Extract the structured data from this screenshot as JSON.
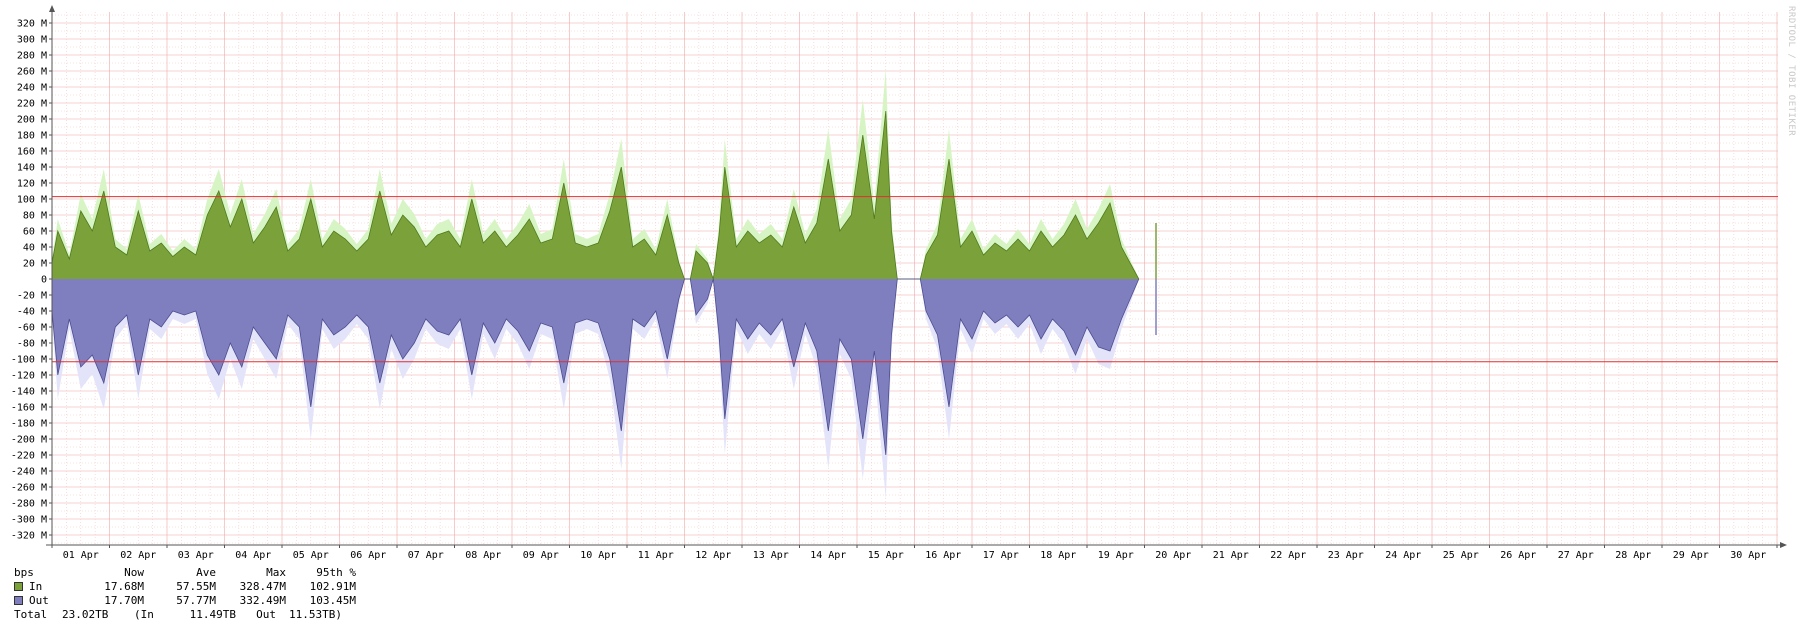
{
  "watermark": "RRDTOOL / TOBI OETIKER",
  "colors": {
    "in": "#7ba13a",
    "in_line": "#4f7a1d",
    "in_max": "#d7f5c4",
    "out": "#7f7fc0",
    "out_line": "#4c4c8f",
    "out_max": "#e3e3fa",
    "percentile_line": "#e03030",
    "grid_minor": "#f4c8c8",
    "grid_major": "#f0a8a8"
  },
  "chart_data": {
    "type": "area",
    "unit": "bps",
    "ylim": [
      -330,
      330
    ],
    "yticks": [
      "320 M",
      "300 M",
      "280 M",
      "260 M",
      "240 M",
      "220 M",
      "200 M",
      "180 M",
      "160 M",
      "140 M",
      "120 M",
      "100 M",
      "80 M",
      "60 M",
      "40 M",
      "20 M",
      "0",
      "-20 M",
      "-40 M",
      "-60 M",
      "-80 M",
      "-100 M",
      "-120 M",
      "-140 M",
      "-160 M",
      "-180 M",
      "-200 M",
      "-220 M",
      "-240 M",
      "-260 M",
      "-280 M",
      "-300 M",
      "-320 M"
    ],
    "yticks_values": [
      320,
      300,
      280,
      260,
      240,
      220,
      200,
      180,
      160,
      140,
      120,
      100,
      80,
      60,
      40,
      20,
      0,
      -20,
      -40,
      -60,
      -80,
      -100,
      -120,
      -140,
      -160,
      -180,
      -200,
      -220,
      -240,
      -260,
      -280,
      -300,
      -320
    ],
    "xticks": [
      "01 Apr",
      "02 Apr",
      "03 Apr",
      "04 Apr",
      "05 Apr",
      "06 Apr",
      "07 Apr",
      "08 Apr",
      "09 Apr",
      "10 Apr",
      "11 Apr",
      "12 Apr",
      "13 Apr",
      "14 Apr",
      "15 Apr",
      "16 Apr",
      "17 Apr",
      "18 Apr",
      "19 Apr",
      "20 Apr",
      "21 Apr",
      "22 Apr",
      "23 Apr",
      "24 Apr",
      "25 Apr",
      "26 Apr",
      "27 Apr",
      "28 Apr",
      "29 Apr",
      "30 Apr"
    ],
    "x_days_range": [
      0,
      30
    ],
    "percentile_in": 102.91,
    "percentile_out": 103.45,
    "series": [
      {
        "name": "In",
        "points": [
          [
            0,
            20
          ],
          [
            0.1,
            60
          ],
          [
            0.3,
            25
          ],
          [
            0.5,
            85
          ],
          [
            0.7,
            60
          ],
          [
            0.9,
            110
          ],
          [
            1.1,
            40
          ],
          [
            1.3,
            30
          ],
          [
            1.5,
            85
          ],
          [
            1.7,
            35
          ],
          [
            1.9,
            45
          ],
          [
            2.1,
            28
          ],
          [
            2.3,
            40
          ],
          [
            2.5,
            30
          ],
          [
            2.7,
            80
          ],
          [
            2.9,
            110
          ],
          [
            3.1,
            65
          ],
          [
            3.3,
            100
          ],
          [
            3.5,
            45
          ],
          [
            3.7,
            65
          ],
          [
            3.9,
            90
          ],
          [
            4.1,
            35
          ],
          [
            4.3,
            50
          ],
          [
            4.5,
            100
          ],
          [
            4.7,
            40
          ],
          [
            4.9,
            60
          ],
          [
            5.1,
            50
          ],
          [
            5.3,
            35
          ],
          [
            5.5,
            50
          ],
          [
            5.7,
            110
          ],
          [
            5.9,
            55
          ],
          [
            6.1,
            80
          ],
          [
            6.3,
            65
          ],
          [
            6.5,
            40
          ],
          [
            6.7,
            55
          ],
          [
            6.9,
            60
          ],
          [
            7.1,
            40
          ],
          [
            7.3,
            100
          ],
          [
            7.5,
            45
          ],
          [
            7.7,
            60
          ],
          [
            7.9,
            40
          ],
          [
            8.1,
            55
          ],
          [
            8.3,
            75
          ],
          [
            8.5,
            45
          ],
          [
            8.7,
            50
          ],
          [
            8.9,
            120
          ],
          [
            9.1,
            45
          ],
          [
            9.3,
            40
          ],
          [
            9.5,
            45
          ],
          [
            9.7,
            85
          ],
          [
            9.9,
            140
          ],
          [
            10.1,
            40
          ],
          [
            10.3,
            50
          ],
          [
            10.5,
            30
          ],
          [
            10.7,
            80
          ],
          [
            10.9,
            20
          ],
          [
            11.0,
            0
          ],
          [
            11.1,
            0
          ],
          [
            11.2,
            35
          ],
          [
            11.4,
            20
          ],
          [
            11.5,
            0
          ],
          [
            11.6,
            55
          ],
          [
            11.7,
            140
          ],
          [
            11.9,
            40
          ],
          [
            12.1,
            60
          ],
          [
            12.3,
            45
          ],
          [
            12.5,
            55
          ],
          [
            12.7,
            40
          ],
          [
            12.9,
            90
          ],
          [
            13.1,
            45
          ],
          [
            13.3,
            70
          ],
          [
            13.5,
            150
          ],
          [
            13.7,
            60
          ],
          [
            13.9,
            80
          ],
          [
            14.1,
            180
          ],
          [
            14.3,
            75
          ],
          [
            14.5,
            210
          ],
          [
            14.6,
            60
          ],
          [
            14.7,
            0
          ],
          [
            15.1,
            0
          ],
          [
            15.2,
            30
          ],
          [
            15.4,
            55
          ],
          [
            15.6,
            150
          ],
          [
            15.8,
            40
          ],
          [
            16.0,
            60
          ],
          [
            16.2,
            30
          ],
          [
            16.4,
            45
          ],
          [
            16.6,
            35
          ],
          [
            16.8,
            50
          ],
          [
            17.0,
            35
          ],
          [
            17.2,
            60
          ],
          [
            17.4,
            40
          ],
          [
            17.6,
            55
          ],
          [
            17.8,
            80
          ],
          [
            18.0,
            50
          ],
          [
            18.2,
            70
          ],
          [
            18.4,
            95
          ],
          [
            18.6,
            40
          ],
          [
            18.9,
            0
          ]
        ]
      },
      {
        "name": "Out",
        "points": [
          [
            0,
            -40
          ],
          [
            0.1,
            -120
          ],
          [
            0.3,
            -50
          ],
          [
            0.5,
            -110
          ],
          [
            0.7,
            -95
          ],
          [
            0.9,
            -130
          ],
          [
            1.1,
            -60
          ],
          [
            1.3,
            -45
          ],
          [
            1.5,
            -120
          ],
          [
            1.7,
            -50
          ],
          [
            1.9,
            -60
          ],
          [
            2.1,
            -40
          ],
          [
            2.3,
            -45
          ],
          [
            2.5,
            -40
          ],
          [
            2.7,
            -95
          ],
          [
            2.9,
            -120
          ],
          [
            3.1,
            -80
          ],
          [
            3.3,
            -110
          ],
          [
            3.5,
            -60
          ],
          [
            3.7,
            -80
          ],
          [
            3.9,
            -100
          ],
          [
            4.1,
            -45
          ],
          [
            4.3,
            -60
          ],
          [
            4.5,
            -160
          ],
          [
            4.7,
            -50
          ],
          [
            4.9,
            -70
          ],
          [
            5.1,
            -60
          ],
          [
            5.3,
            -45
          ],
          [
            5.5,
            -60
          ],
          [
            5.7,
            -130
          ],
          [
            5.9,
            -70
          ],
          [
            6.1,
            -100
          ],
          [
            6.3,
            -80
          ],
          [
            6.5,
            -50
          ],
          [
            6.7,
            -65
          ],
          [
            6.9,
            -70
          ],
          [
            7.1,
            -50
          ],
          [
            7.3,
            -120
          ],
          [
            7.5,
            -55
          ],
          [
            7.7,
            -80
          ],
          [
            7.9,
            -50
          ],
          [
            8.1,
            -65
          ],
          [
            8.3,
            -90
          ],
          [
            8.5,
            -55
          ],
          [
            8.7,
            -60
          ],
          [
            8.9,
            -130
          ],
          [
            9.1,
            -55
          ],
          [
            9.3,
            -50
          ],
          [
            9.5,
            -55
          ],
          [
            9.7,
            -100
          ],
          [
            9.9,
            -190
          ],
          [
            10.1,
            -50
          ],
          [
            10.3,
            -60
          ],
          [
            10.5,
            -40
          ],
          [
            10.7,
            -100
          ],
          [
            10.9,
            -25
          ],
          [
            11.0,
            0
          ],
          [
            11.1,
            0
          ],
          [
            11.2,
            -45
          ],
          [
            11.4,
            -25
          ],
          [
            11.5,
            0
          ],
          [
            11.6,
            -70
          ],
          [
            11.7,
            -175
          ],
          [
            11.9,
            -50
          ],
          [
            12.1,
            -75
          ],
          [
            12.3,
            -55
          ],
          [
            12.5,
            -70
          ],
          [
            12.7,
            -50
          ],
          [
            12.9,
            -110
          ],
          [
            13.1,
            -55
          ],
          [
            13.3,
            -90
          ],
          [
            13.5,
            -190
          ],
          [
            13.7,
            -75
          ],
          [
            13.9,
            -100
          ],
          [
            14.1,
            -200
          ],
          [
            14.3,
            -90
          ],
          [
            14.5,
            -220
          ],
          [
            14.6,
            -70
          ],
          [
            14.7,
            0
          ],
          [
            15.1,
            0
          ],
          [
            15.2,
            -40
          ],
          [
            15.4,
            -70
          ],
          [
            15.6,
            -160
          ],
          [
            15.8,
            -50
          ],
          [
            16.0,
            -75
          ],
          [
            16.2,
            -40
          ],
          [
            16.4,
            -55
          ],
          [
            16.6,
            -45
          ],
          [
            16.8,
            -60
          ],
          [
            17.0,
            -45
          ],
          [
            17.2,
            -75
          ],
          [
            17.4,
            -50
          ],
          [
            17.6,
            -65
          ],
          [
            17.8,
            -95
          ],
          [
            18.0,
            -60
          ],
          [
            18.2,
            -85
          ],
          [
            18.4,
            -90
          ],
          [
            18.6,
            -50
          ],
          [
            18.9,
            0
          ]
        ]
      }
    ],
    "tail_spike": {
      "x": 19.2,
      "in": 70,
      "out": -70
    }
  },
  "legend": {
    "headers": [
      "bps",
      "Now",
      "Ave",
      "Max",
      "95th %"
    ],
    "rows": [
      {
        "name": "In",
        "now": "17.68M",
        "ave": "57.55M",
        "max": "328.47M",
        "p95": "102.91M"
      },
      {
        "name": "Out",
        "now": "17.70M",
        "ave": "57.77M",
        "max": "332.49M",
        "p95": "103.45M"
      }
    ],
    "total": {
      "label": "Total",
      "value": "23.02TB",
      "in_label": "(In",
      "in_value": "11.49TB",
      "out_label": "Out",
      "out_value": "11.53TB)"
    }
  }
}
